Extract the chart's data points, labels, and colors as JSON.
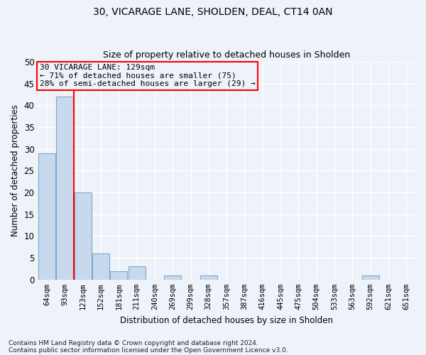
{
  "title1": "30, VICARAGE LANE, SHOLDEN, DEAL, CT14 0AN",
  "title2": "Size of property relative to detached houses in Sholden",
  "xlabel": "Distribution of detached houses by size in Sholden",
  "ylabel": "Number of detached properties",
  "categories": [
    "64sqm",
    "93sqm",
    "123sqm",
    "152sqm",
    "181sqm",
    "211sqm",
    "240sqm",
    "269sqm",
    "299sqm",
    "328sqm",
    "357sqm",
    "387sqm",
    "416sqm",
    "445sqm",
    "475sqm",
    "504sqm",
    "533sqm",
    "563sqm",
    "592sqm",
    "621sqm",
    "651sqm"
  ],
  "values": [
    29,
    42,
    20,
    6,
    2,
    3,
    0,
    1,
    0,
    1,
    0,
    0,
    0,
    0,
    0,
    0,
    0,
    0,
    1,
    0,
    0
  ],
  "bar_color": "#c8d9ed",
  "bar_edge_color": "#7aaad0",
  "red_line_x": 1.5,
  "annotation_line1": "30 VICARAGE LANE: 129sqm",
  "annotation_line2": "← 71% of detached houses are smaller (75)",
  "annotation_line3": "28% of semi-detached houses are larger (29) →",
  "ylim": [
    0,
    50
  ],
  "yticks": [
    0,
    5,
    10,
    15,
    20,
    25,
    30,
    35,
    40,
    45,
    50
  ],
  "footnote1": "Contains HM Land Registry data © Crown copyright and database right 2024.",
  "footnote2": "Contains public sector information licensed under the Open Government Licence v3.0.",
  "background_color": "#eef2f9",
  "grid_color": "#ffffff"
}
